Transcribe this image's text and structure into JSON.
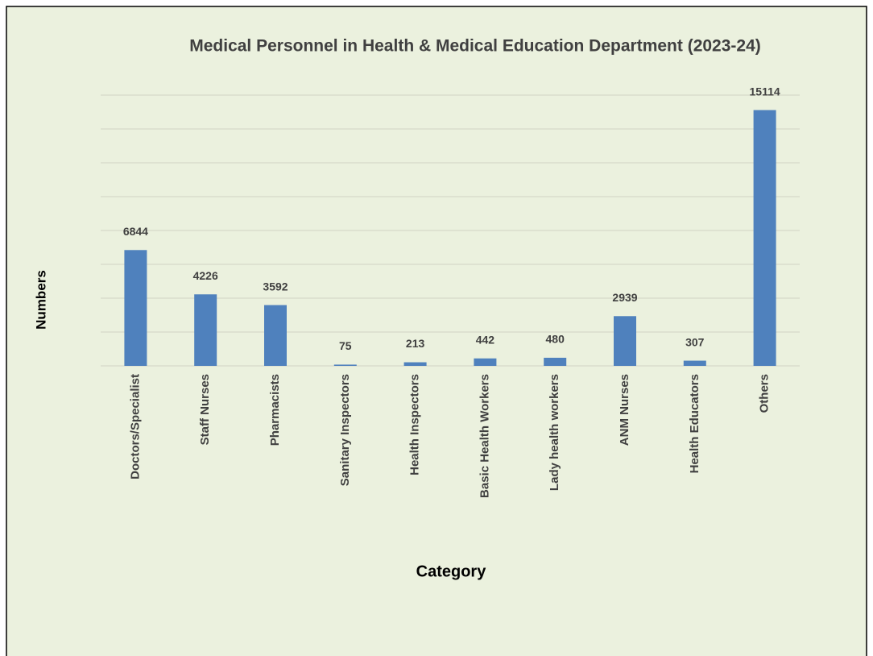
{
  "chart_data": {
    "type": "bar",
    "title": "Medical Personnel in Health & Medical Education  Department (2023-24)",
    "x_label": "Category",
    "y_label": "Numbers",
    "categories": [
      "Doctors/Specialist",
      "Staff Nurses",
      "Pharmacists",
      "Sanitary Inspectors",
      "Health Inspectors",
      "Basic Health Workers",
      "Lady health workers",
      "ANM Nurses",
      "Health Educators",
      "Others"
    ],
    "values": [
      6844,
      4226,
      3592,
      75,
      213,
      442,
      480,
      2939,
      307,
      15114
    ],
    "color": "#4f81bd",
    "ylim": [
      0,
      16000
    ],
    "yticks": [
      0,
      2000,
      4000,
      6000,
      8000,
      10000,
      12000,
      14000,
      16000
    ],
    "grid": true,
    "show_ytick_labels": false
  }
}
